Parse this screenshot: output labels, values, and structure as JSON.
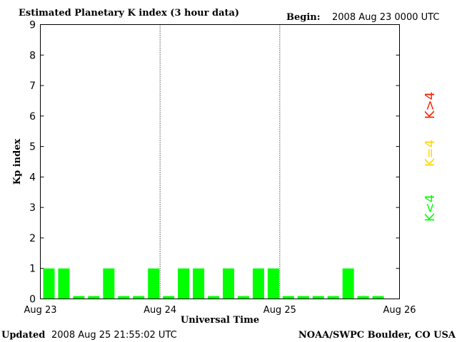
{
  "header": {
    "title": "Estimated Planetary K index (3 hour data)",
    "begin_label": "Begin:",
    "begin_value": "2008 Aug 23 0000 UTC"
  },
  "footer": {
    "updated_label": "Updated",
    "updated_value": "2008 Aug 25 21:55:02 UTC",
    "source": "NOAA/SWPC Boulder, CO USA"
  },
  "legend": {
    "gt4": "K>4",
    "eq4": "K=4",
    "lt4": "K<4"
  },
  "colors": {
    "lt4": "#00ff00",
    "eq4": "#ffd700",
    "gt4": "#ff2000"
  },
  "chart_data": {
    "type": "bar",
    "title": "Estimated Planetary K index (3 hour data)",
    "xlabel": "Universal Time",
    "ylabel": "Kp index",
    "ylim": [
      0,
      9
    ],
    "yticks": [
      0,
      1,
      2,
      3,
      4,
      5,
      6,
      7,
      8,
      9
    ],
    "xtick_labels": [
      "Aug 23",
      "Aug 24",
      "Aug 25",
      "Aug 26"
    ],
    "grid": "vertical dotted day separators",
    "values": [
      1,
      1,
      0,
      0,
      1,
      0,
      0,
      1,
      0,
      1,
      1,
      0,
      1,
      0,
      1,
      1,
      0,
      0,
      0,
      0,
      1,
      0,
      0
    ]
  }
}
